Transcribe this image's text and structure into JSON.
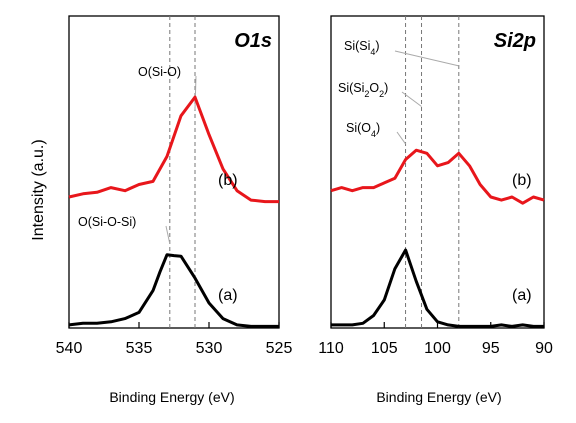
{
  "figure": {
    "ylabel": "Intensity (a.u.)"
  },
  "chart_data": [
    {
      "type": "line",
      "title": "O1s",
      "xlabel": "Binding Energy (eV)",
      "ylabel": "Intensity (a.u.)",
      "xlim": [
        540,
        525
      ],
      "ylim": [
        0,
        1
      ],
      "xticks": [
        540,
        535,
        530,
        525
      ],
      "xtick_labels": [
        "540",
        "535",
        "530",
        "525"
      ],
      "grid": false,
      "reference_lines": [
        532.8,
        531.0
      ],
      "annotations": [
        {
          "text": "O(Si-O)",
          "x": 531.0,
          "y": 0.7
        },
        {
          "text": "O(Si-O-Si)",
          "x": 532.8,
          "y": 0.27
        }
      ],
      "series": [
        {
          "label": "(a)",
          "color": "#000000",
          "x": [
            540,
            539,
            538,
            537,
            536,
            535,
            534,
            533.5,
            533,
            532.5,
            532,
            531,
            530,
            529,
            528,
            527,
            526,
            525
          ],
          "y": [
            0.01,
            0.015,
            0.015,
            0.02,
            0.03,
            0.05,
            0.12,
            0.18,
            0.235,
            0.232,
            0.23,
            0.16,
            0.08,
            0.03,
            0.01,
            0.005,
            0.005,
            0.005
          ]
        },
        {
          "label": "(b)",
          "color": "#e8161b",
          "x": [
            540,
            539,
            538,
            537,
            536,
            535,
            534,
            533,
            532,
            531,
            530,
            529,
            528,
            527,
            526,
            525
          ],
          "y": [
            0.42,
            0.43,
            0.435,
            0.45,
            0.44,
            0.46,
            0.47,
            0.55,
            0.68,
            0.74,
            0.62,
            0.51,
            0.44,
            0.41,
            0.405,
            0.405
          ]
        }
      ]
    },
    {
      "type": "line",
      "title": "Si2p",
      "xlabel": "Binding Energy (eV)",
      "ylabel": "",
      "xlim": [
        110,
        90
      ],
      "ylim": [
        0,
        1
      ],
      "xticks": [
        110,
        105,
        100,
        95,
        90
      ],
      "xtick_labels": [
        "110",
        "105",
        "100",
        "95",
        "90"
      ],
      "grid": false,
      "reference_lines": [
        103.0,
        101.5,
        98.0
      ],
      "annotations": [
        {
          "text": "Si(Si4)",
          "x": 98.0,
          "y": 0.84
        },
        {
          "text": "Si(Si2O2)",
          "x": 101.5,
          "y": 0.71
        },
        {
          "text": "Si(O4)",
          "x": 103.0,
          "y": 0.59
        }
      ],
      "series": [
        {
          "label": "(a)",
          "color": "#000000",
          "x": [
            110,
            109,
            108,
            107,
            106,
            105,
            104,
            103,
            102,
            101,
            100,
            99,
            98,
            97,
            96,
            95,
            94,
            93,
            92,
            91,
            90
          ],
          "y": [
            0.01,
            0.01,
            0.01,
            0.015,
            0.04,
            0.09,
            0.19,
            0.25,
            0.15,
            0.06,
            0.02,
            0.01,
            0.005,
            0.005,
            0.005,
            0.005,
            0.01,
            0.005,
            0.01,
            0.005,
            0.005
          ]
        },
        {
          "label": "(b)",
          "color": "#e8161b",
          "x": [
            110,
            109,
            108,
            107,
            106,
            105,
            104,
            103,
            102,
            101,
            100,
            99,
            98,
            97,
            96,
            95,
            94,
            93,
            92,
            91,
            90
          ],
          "y": [
            0.44,
            0.45,
            0.44,
            0.45,
            0.45,
            0.465,
            0.48,
            0.54,
            0.57,
            0.56,
            0.52,
            0.53,
            0.56,
            0.52,
            0.46,
            0.42,
            0.41,
            0.42,
            0.4,
            0.42,
            0.41
          ]
        }
      ]
    }
  ]
}
